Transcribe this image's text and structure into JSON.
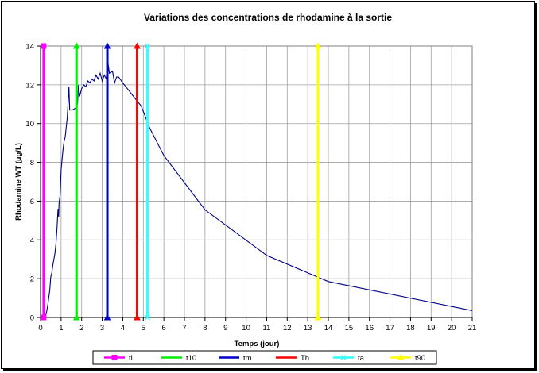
{
  "chart_data": {
    "type": "line",
    "title": "Variations des concentrations de rhodamine à la sortie",
    "xlabel": "Temps (jour)",
    "ylabel": "Rhodamine WT (µg/L)",
    "xlim": [
      0,
      21
    ],
    "ylim": [
      0,
      14
    ],
    "x_ticks": [
      0,
      1,
      2,
      3,
      4,
      5,
      6,
      7,
      8,
      9,
      10,
      11,
      12,
      13,
      14,
      15,
      16,
      17,
      18,
      19,
      20,
      21
    ],
    "y_ticks": [
      0,
      2,
      4,
      6,
      8,
      10,
      12,
      14
    ],
    "grid": true,
    "legend_position": "bottom",
    "series": [
      {
        "style": "line",
        "color": "#000080",
        "points": [
          [
            0.2,
            0.0
          ],
          [
            0.28,
            0.2
          ],
          [
            0.35,
            0.6
          ],
          [
            0.45,
            1.4
          ],
          [
            0.5,
            2.1
          ],
          [
            0.55,
            2.3
          ],
          [
            0.6,
            2.7
          ],
          [
            0.65,
            3.0
          ],
          [
            0.7,
            3.3
          ],
          [
            0.75,
            3.8
          ],
          [
            0.8,
            4.6
          ],
          [
            0.85,
            5.6
          ],
          [
            0.88,
            5.2
          ],
          [
            0.9,
            5.9
          ],
          [
            0.95,
            6.3
          ],
          [
            1.0,
            7.6
          ],
          [
            1.05,
            8.2
          ],
          [
            1.1,
            8.7
          ],
          [
            1.15,
            9.1
          ],
          [
            1.2,
            9.3
          ],
          [
            1.25,
            9.8
          ],
          [
            1.3,
            10.3
          ],
          [
            1.38,
            11.9
          ],
          [
            1.42,
            10.7
          ],
          [
            1.55,
            10.7
          ],
          [
            1.7,
            10.8
          ],
          [
            1.8,
            11.0
          ],
          [
            1.85,
            12.0
          ],
          [
            1.9,
            11.4
          ],
          [
            2.0,
            11.8
          ],
          [
            2.1,
            12.0
          ],
          [
            2.2,
            11.9
          ],
          [
            2.3,
            12.2
          ],
          [
            2.4,
            12.1
          ],
          [
            2.5,
            12.3
          ],
          [
            2.6,
            12.2
          ],
          [
            2.7,
            12.5
          ],
          [
            2.8,
            12.3
          ],
          [
            2.9,
            12.6
          ],
          [
            3.0,
            12.2
          ],
          [
            3.1,
            12.5
          ],
          [
            3.2,
            12.3
          ],
          [
            3.25,
            13.4
          ],
          [
            3.35,
            12.6
          ],
          [
            3.5,
            12.7
          ],
          [
            3.6,
            12.1
          ],
          [
            3.7,
            12.4
          ],
          [
            3.8,
            12.4
          ],
          [
            4.0,
            12.1
          ],
          [
            4.3,
            11.7
          ],
          [
            4.6,
            11.3
          ],
          [
            4.9,
            10.9
          ],
          [
            5.3,
            9.8
          ],
          [
            6.0,
            8.35
          ],
          [
            8.0,
            5.55
          ],
          [
            11.0,
            3.2
          ],
          [
            14.0,
            1.85
          ],
          [
            21.0,
            0.35
          ]
        ]
      },
      {
        "name": "ti",
        "style": "vline",
        "x": 0.15,
        "color": "#ff00ff"
      },
      {
        "name": "t10",
        "style": "vline",
        "x": 1.75,
        "color": "#00ee00"
      },
      {
        "name": "tm",
        "style": "vline",
        "x": 3.25,
        "color": "#0000cc"
      },
      {
        "name": "Th",
        "style": "vline",
        "x": 4.7,
        "color": "#ff0000"
      },
      {
        "name": "ta",
        "style": "vline",
        "x": 5.2,
        "color": "#33ffff"
      },
      {
        "name": "t90",
        "style": "vline",
        "x": 13.5,
        "color": "#ffff00"
      }
    ]
  }
}
